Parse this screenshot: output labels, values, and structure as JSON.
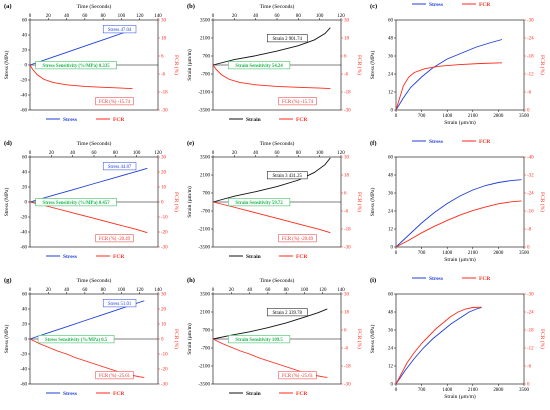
{
  "figure": {
    "colors": {
      "stress": "#1f3fd8",
      "fcr": "#ff2a1a",
      "strain": "#111111",
      "axis_right": "#ff2a1a",
      "box_green": "#1bb64b",
      "box_red": "#e53333",
      "box_blue": "#2244dd"
    }
  },
  "chart_data": [
    {
      "panel": "(a)",
      "type": "line",
      "xlabel": "Time (Seconds)",
      "ylabel": "Stress (MPa)",
      "y2label": "FCR (%)",
      "xlim": [
        0,
        140
      ],
      "ylim": [
        -60,
        60
      ],
      "y2lim": [
        -30,
        30
      ],
      "x_ticks": [
        "0",
        "20",
        "40",
        "60",
        "80",
        "100",
        "120",
        "140"
      ],
      "y_ticks": [
        "60",
        "40",
        "20",
        "0",
        "-20",
        "-40",
        "-60"
      ],
      "y2_ticks": [
        "30",
        "18",
        "6",
        "-6",
        "-18",
        "-30"
      ],
      "series": [
        {
          "name": "Stress",
          "color": "#1f3fd8",
          "axis": "left",
          "x": [
            0,
            20,
            40,
            60,
            80,
            100,
            112
          ],
          "y": [
            0,
            8.4,
            16.8,
            25.2,
            33.6,
            42.0,
            47.0
          ]
        },
        {
          "name": "FCR",
          "color": "#ff2a1a",
          "axis": "right",
          "x": [
            0,
            3,
            8,
            15,
            25,
            40,
            60,
            80,
            100,
            112
          ],
          "y": [
            0,
            -3,
            -6.5,
            -9.5,
            -11.6,
            -13.2,
            -14.3,
            -14.9,
            -15.4,
            -15.74
          ]
        }
      ],
      "annotations": [
        {
          "text": "Stress 47.04",
          "style": "blue"
        },
        {
          "text": "Stress Sensitivity (%/MPa) 0.335",
          "style": "green"
        },
        {
          "text": "FCR (%) -15.74",
          "style": "red"
        }
      ]
    },
    {
      "panel": "(b)",
      "type": "line",
      "xlabel": "Time (Seconds)",
      "ylabel": "Strain (µm/m)",
      "y2label": "FCR (%)",
      "xlim": [
        0,
        120
      ],
      "ylim": [
        -3500,
        3500
      ],
      "y2lim": [
        -30,
        30
      ],
      "x_ticks": [
        "0",
        "20",
        "40",
        "60",
        "80",
        "100",
        "120"
      ],
      "y_ticks": [
        "3500",
        "2100",
        "700",
        "-700",
        "-2100",
        "-3500"
      ],
      "y2_ticks": [
        "30",
        "18",
        "6",
        "-6",
        "-18",
        "-30"
      ],
      "series": [
        {
          "name": "Strain",
          "color": "#111111",
          "axis": "left",
          "x": [
            0,
            20,
            40,
            60,
            80,
            95,
            105,
            110
          ],
          "y": [
            0,
            420,
            720,
            1080,
            1500,
            1950,
            2450,
            2901.74
          ]
        },
        {
          "name": "FCR",
          "color": "#ff2a1a",
          "axis": "right",
          "x": [
            0,
            3,
            8,
            15,
            25,
            40,
            60,
            80,
            100,
            110
          ],
          "y": [
            0,
            -3,
            -6.5,
            -9.5,
            -11.6,
            -13.2,
            -14.3,
            -14.9,
            -15.4,
            -15.74
          ]
        }
      ],
      "annotations": [
        {
          "text": "Strain 2 901.74",
          "style": "black"
        },
        {
          "text": "Strain Sensitivity 54.24",
          "style": "green"
        },
        {
          "text": "FCR (%) -15.74",
          "style": "red"
        }
      ]
    },
    {
      "panel": "(c)",
      "type": "line",
      "xlabel": "Strain (µm/m)",
      "ylabel": "Stress (MPa)",
      "y2label": "FCR (%)",
      "xlim": [
        0,
        3500
      ],
      "ylim": [
        0,
        60
      ],
      "y2lim": [
        0,
        -30
      ],
      "x_ticks": [
        "0",
        "700",
        "1400",
        "2100",
        "2800",
        "3500"
      ],
      "y_ticks": [
        "60",
        "48",
        "36",
        "24",
        "12",
        "0"
      ],
      "y2_ticks": [
        "-30",
        "-24",
        "-18",
        "-12",
        "-6",
        "0"
      ],
      "series": [
        {
          "name": "Stress",
          "color": "#1f3fd8",
          "axis": "left",
          "x": [
            0,
            200,
            400,
            700,
            1000,
            1400,
            1800,
            2200,
            2600,
            2900
          ],
          "y": [
            0,
            8,
            15,
            22,
            28,
            34,
            38,
            42,
            45,
            47
          ]
        },
        {
          "name": "FCR",
          "color": "#ff2a1a",
          "axis": "right",
          "x": [
            0,
            100,
            200,
            350,
            500,
            800,
            1200,
            1700,
            2300,
            2900
          ],
          "y": [
            0,
            -4,
            -8,
            -11,
            -12.5,
            -13.8,
            -14.6,
            -15.1,
            -15.5,
            -15.74
          ]
        }
      ]
    },
    {
      "panel": "(d)",
      "type": "line",
      "xlabel": "Time (Seconds)",
      "ylabel": "Stress (MPa)",
      "y2label": "FCR (%)",
      "xlim": [
        0,
        120
      ],
      "ylim": [
        -60,
        60
      ],
      "y2lim": [
        -30,
        30
      ],
      "x_ticks": [
        "0",
        "20",
        "40",
        "60",
        "80",
        "100",
        "120"
      ],
      "y_ticks": [
        "60",
        "40",
        "20",
        "0",
        "-20",
        "-40",
        "-60"
      ],
      "y2_ticks": [
        "30",
        "20",
        "10",
        "0",
        "-10",
        "-20",
        "-30"
      ],
      "series": [
        {
          "name": "Stress",
          "color": "#1f3fd8",
          "axis": "left",
          "x": [
            0,
            20,
            40,
            60,
            80,
            100,
            110
          ],
          "y": [
            0,
            8.2,
            16.3,
            24.5,
            32.6,
            40.8,
            44.87
          ]
        },
        {
          "name": "FCR",
          "color": "#ff2a1a",
          "axis": "right",
          "x": [
            0,
            20,
            40,
            60,
            80,
            100,
            110
          ],
          "y": [
            0,
            -3.5,
            -7.2,
            -10.9,
            -14.6,
            -18.3,
            -20.49
          ]
        }
      ],
      "annotations": [
        {
          "text": "Stress 44.87",
          "style": "blue"
        },
        {
          "text": "Stress Sensitivity (%/MPa) 0.457",
          "style": "green"
        },
        {
          "text": "FCR (%) -20.49",
          "style": "red"
        }
      ]
    },
    {
      "panel": "(e)",
      "type": "line",
      "xlabel": "Time (Seconds)",
      "ylabel": "Strain (µm/m)",
      "y2label": "FCR (%)",
      "xlim": [
        0,
        120
      ],
      "ylim": [
        -3500,
        3500
      ],
      "y2lim": [
        -30,
        30
      ],
      "x_ticks": [
        "0",
        "20",
        "40",
        "60",
        "80",
        "100",
        "120"
      ],
      "y_ticks": [
        "3500",
        "2100",
        "700",
        "-700",
        "-2100",
        "-3500"
      ],
      "y2_ticks": [
        "30",
        "18",
        "6",
        "-6",
        "-18",
        "-30"
      ],
      "series": [
        {
          "name": "Strain",
          "color": "#111111",
          "axis": "left",
          "x": [
            0,
            20,
            40,
            60,
            80,
            95,
            105,
            110
          ],
          "y": [
            0,
            450,
            800,
            1200,
            1700,
            2300,
            2900,
            3431.25
          ]
        },
        {
          "name": "FCR",
          "color": "#ff2a1a",
          "axis": "right",
          "x": [
            0,
            20,
            40,
            60,
            80,
            100,
            110
          ],
          "y": [
            0,
            -3.5,
            -7.2,
            -10.9,
            -14.6,
            -18.3,
            -20.49
          ]
        }
      ],
      "annotations": [
        {
          "text": "Strain 3 431.25",
          "style": "black"
        },
        {
          "text": "Strain Sensitivity 59.72",
          "style": "green"
        },
        {
          "text": "FCR (%) -20.49",
          "style": "red"
        }
      ]
    },
    {
      "panel": "(f)",
      "type": "line",
      "xlabel": "Strain (µm/m)",
      "ylabel": "Stress (MPa)",
      "y2label": "FCR (%)",
      "xlim": [
        0,
        3500
      ],
      "ylim": [
        0,
        60
      ],
      "y2lim": [
        0,
        -40
      ],
      "x_ticks": [
        "0",
        "700",
        "1400",
        "2100",
        "2800",
        "3500"
      ],
      "y_ticks": [
        "60",
        "48",
        "36",
        "24",
        "12",
        "0"
      ],
      "y2_ticks": [
        "-40",
        "-32",
        "-24",
        "-16",
        "-8",
        "0"
      ],
      "series": [
        {
          "name": "Stress",
          "color": "#1f3fd8",
          "axis": "left",
          "x": [
            0,
            350,
            700,
            1050,
            1400,
            1750,
            2100,
            2450,
            2800,
            3150,
            3431
          ],
          "y": [
            0,
            8,
            16,
            23,
            29,
            34,
            38,
            41,
            43,
            44.3,
            44.87
          ]
        },
        {
          "name": "FCR",
          "color": "#ff2a1a",
          "axis": "right",
          "x": [
            0,
            350,
            700,
            1050,
            1400,
            1750,
            2100,
            2450,
            2800,
            3150,
            3431
          ],
          "y": [
            0,
            -3,
            -6.3,
            -9.2,
            -11.8,
            -14.2,
            -16.2,
            -17.8,
            -19.2,
            -20.1,
            -20.49
          ]
        }
      ]
    },
    {
      "panel": "(g)",
      "type": "line",
      "xlabel": "Time (Seconds)",
      "ylabel": "Stress (MPa)",
      "y2label": "FCR (%)",
      "xlim": [
        0,
        140
      ],
      "ylim": [
        -60,
        60
      ],
      "y2lim": [
        -30,
        30
      ],
      "x_ticks": [
        "0",
        "20",
        "40",
        "60",
        "80",
        "100",
        "120",
        "140"
      ],
      "y_ticks": [
        "60",
        "40",
        "20",
        "0",
        "-20",
        "-40",
        "-60"
      ],
      "y2_ticks": [
        "30",
        "20",
        "10",
        "0",
        "-10",
        "-20",
        "-30"
      ],
      "series": [
        {
          "name": "Stress",
          "color": "#1f3fd8",
          "axis": "left",
          "x": [
            0,
            20,
            40,
            60,
            80,
            100,
            120,
            125
          ],
          "y": [
            0,
            8.2,
            16.3,
            24.5,
            32.6,
            40.8,
            49.0,
            51.01
          ]
        },
        {
          "name": "FCR",
          "color": "#ff2a1a",
          "axis": "right",
          "x": [
            0,
            10,
            20,
            30,
            40,
            50,
            60,
            70,
            80,
            90,
            100,
            110,
            120,
            125
          ],
          "y": [
            0,
            -3,
            -5.5,
            -8,
            -10,
            -12.5,
            -14.5,
            -16.5,
            -18.5,
            -20.5,
            -22.5,
            -24,
            -25.2,
            -25.61
          ]
        }
      ],
      "annotations": [
        {
          "text": "Stress 51.01",
          "style": "blue"
        },
        {
          "text": "Stress Sensitivity (%/MPa) 0.5",
          "style": "green"
        },
        {
          "text": "FCR (%) -25.61",
          "style": "red"
        }
      ]
    },
    {
      "panel": "(h)",
      "type": "line",
      "xlabel": "Time (Seconds)",
      "ylabel": "Strain (µm/m)",
      "y2label": "FCR (%)",
      "xlim": [
        0,
        140
      ],
      "ylim": [
        -3500,
        3500
      ],
      "y2lim": [
        -30,
        30
      ],
      "x_ticks": [
        "0",
        "20",
        "40",
        "60",
        "80",
        "100",
        "120",
        "140"
      ],
      "y_ticks": [
        "3500",
        "2100",
        "700",
        "-700",
        "-2100",
        "-3500"
      ],
      "y2_ticks": [
        "30",
        "18",
        "6",
        "-6",
        "-18",
        "-30"
      ],
      "series": [
        {
          "name": "Strain",
          "color": "#111111",
          "axis": "left",
          "x": [
            0,
            20,
            40,
            60,
            80,
            100,
            115,
            125
          ],
          "y": [
            0,
            300,
            560,
            880,
            1250,
            1700,
            2050,
            2339.78
          ]
        },
        {
          "name": "FCR",
          "color": "#ff2a1a",
          "axis": "right",
          "x": [
            0,
            10,
            20,
            30,
            40,
            50,
            60,
            70,
            80,
            90,
            100,
            110,
            120,
            125
          ],
          "y": [
            0,
            -3,
            -5.5,
            -8,
            -10,
            -12.5,
            -14.5,
            -16.5,
            -18.5,
            -20.5,
            -22.5,
            -24,
            -25.2,
            -25.61
          ]
        }
      ],
      "annotations": [
        {
          "text": "Strain 2 339.78",
          "style": "black"
        },
        {
          "text": "Strain Sensitivity 109.5",
          "style": "green"
        },
        {
          "text": "FCR (%) -25.61",
          "style": "red"
        }
      ]
    },
    {
      "panel": "(i)",
      "type": "line",
      "xlabel": "Strain (µm/m)",
      "ylabel": "Stress (MPa)",
      "y2label": "FCR (%)",
      "xlim": [
        0,
        3500
      ],
      "ylim": [
        0,
        60
      ],
      "y2lim": [
        0,
        -30
      ],
      "x_ticks": [
        "0",
        "700",
        "1400",
        "2100",
        "2800",
        "3500"
      ],
      "y_ticks": [
        "60",
        "48",
        "36",
        "24",
        "12",
        "0"
      ],
      "y2_ticks": [
        "-30",
        "-24",
        "-18",
        "-12",
        "-6",
        "0"
      ],
      "series": [
        {
          "name": "Stress",
          "color": "#1f3fd8",
          "axis": "left",
          "x": [
            0,
            250,
            500,
            750,
            1000,
            1250,
            1500,
            1750,
            2000,
            2200,
            2340
          ],
          "y": [
            0,
            9,
            17,
            24,
            30,
            35,
            40,
            44,
            48,
            50,
            51
          ]
        },
        {
          "name": "FCR",
          "color": "#ff2a1a",
          "axis": "right",
          "x": [
            0,
            150,
            300,
            500,
            700,
            900,
            1100,
            1300,
            1500,
            1700,
            1900,
            2100,
            2340
          ],
          "y": [
            0,
            -3.5,
            -7,
            -10.5,
            -13.5,
            -16,
            -18.5,
            -20.5,
            -22.5,
            -24,
            -25,
            -25.5,
            -25.61
          ]
        }
      ]
    }
  ],
  "legends": [
    {
      "panel": "(a)",
      "items": [
        "Stress",
        "FCR"
      ]
    },
    {
      "panel": "(b)",
      "items": [
        "Strain",
        "FCR"
      ]
    },
    {
      "panel": "(c)",
      "items": [
        "Stress",
        "FCR"
      ]
    },
    {
      "panel": "(d)",
      "items": [
        "Stress",
        "FCR"
      ]
    },
    {
      "panel": "(e)",
      "items": [
        "Strain",
        "FCR"
      ]
    },
    {
      "panel": "(f)",
      "items": [
        "Stress",
        "FCR"
      ]
    },
    {
      "panel": "(g)",
      "items": [
        "Stress",
        "FCR"
      ]
    },
    {
      "panel": "(h)",
      "items": [
        "Strain",
        "FCR"
      ]
    },
    {
      "panel": "(i)",
      "items": [
        "Stress",
        "FCR"
      ]
    }
  ]
}
